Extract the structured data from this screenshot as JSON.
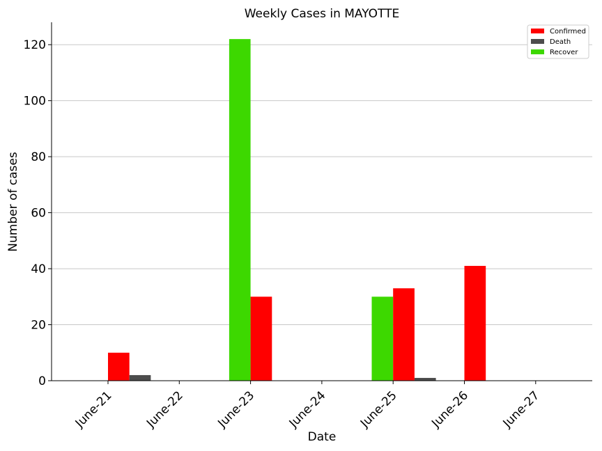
{
  "chart_data": {
    "type": "bar",
    "title": "Weekly Cases in MAYOTTE",
    "xlabel": "Date",
    "ylabel": "Number of cases",
    "categories": [
      "June-21",
      "June-22",
      "June-23",
      "June-24",
      "June-25",
      "June-26",
      "June-27"
    ],
    "y_ticks": [
      0,
      20,
      40,
      60,
      80,
      100,
      120
    ],
    "ylim": [
      0,
      128
    ],
    "grid": "horizontal",
    "legend_position": "top-right",
    "series": [
      {
        "name": "Recover",
        "color": "#3dd800",
        "values": [
          0,
          0,
          122,
          0,
          30,
          0,
          0
        ]
      },
      {
        "name": "Confirmed",
        "color": "#ff0000",
        "values": [
          10,
          0,
          30,
          0,
          33,
          41,
          0
        ]
      },
      {
        "name": "Death",
        "color": "#4d4d4d",
        "values": [
          2,
          0,
          0,
          0,
          1,
          0,
          0
        ]
      }
    ],
    "legend": [
      {
        "name": "Confirmed",
        "color": "#ff0000"
      },
      {
        "name": "Death",
        "color": "#4d4d4d"
      },
      {
        "name": "Recover",
        "color": "#3dd800"
      }
    ]
  }
}
